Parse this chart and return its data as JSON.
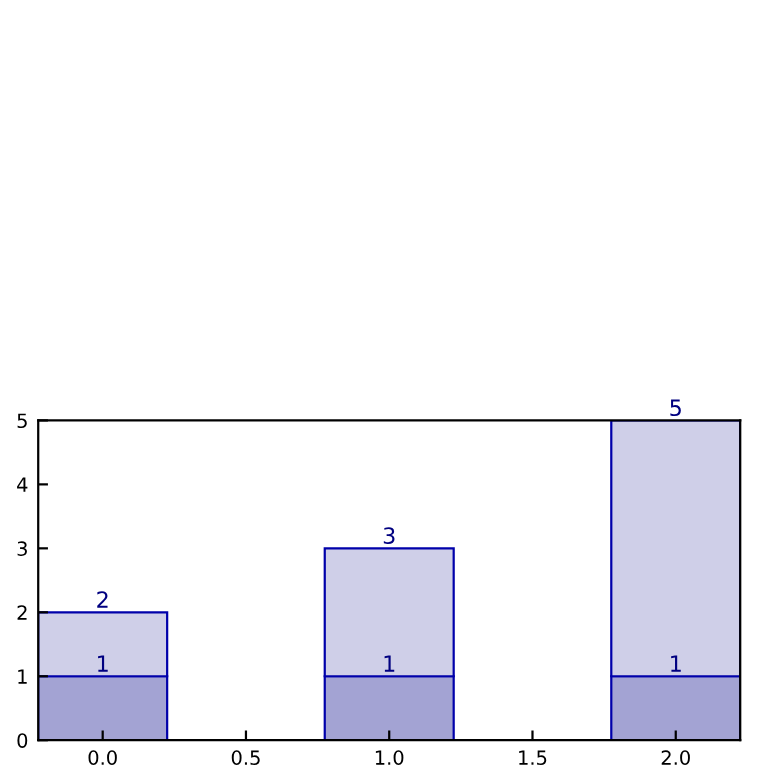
{
  "chart_data": {
    "type": "bar",
    "stacked": true,
    "x": [
      0,
      1,
      2
    ],
    "series": [
      {
        "color": "#a3a3d3",
        "values": [
          1,
          1,
          1
        ],
        "value_labels": [
          "1",
          "1",
          "1"
        ]
      },
      {
        "color": "#cfcfe8",
        "values": [
          1,
          2,
          4
        ]
      }
    ],
    "totals": [
      "2",
      "3",
      "5"
    ],
    "xlim": [
      -0.225,
      2.225
    ],
    "xticks": [
      {
        "value": 0,
        "label": "0.0"
      },
      {
        "value": 0.5,
        "label": "0.5"
      },
      {
        "value": 1,
        "label": "1.0"
      },
      {
        "value": 1.5,
        "label": "1.5"
      },
      {
        "value": 2,
        "label": "2.0"
      }
    ],
    "ylim": [
      0,
      5
    ],
    "yticks": [
      0,
      1,
      2,
      3,
      4,
      5
    ],
    "grid": false
  }
}
